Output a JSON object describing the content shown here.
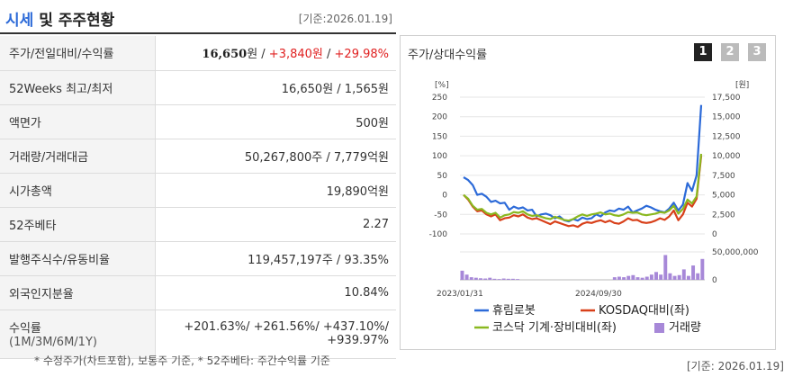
{
  "header": {
    "title_accent": "시세",
    "title_rest": " 및 주주현황",
    "date": "[기준:2026.01.19]"
  },
  "rows": [
    {
      "label": "주가/전일대비/수익률",
      "price": "16,650",
      "won": "원 / ",
      "change": "+3,840원",
      "sep": " / ",
      "rate": "+29.98%"
    },
    {
      "label": "52Weeks 최고/최저",
      "value": "16,650원 / 1,565원"
    },
    {
      "label": "액면가",
      "value": "500원"
    },
    {
      "label": "거래량/거래대금",
      "value": "50,267,800주 / 7,779억원"
    },
    {
      "label": "시가총액",
      "value": "19,890억원"
    },
    {
      "label": "52주베타",
      "value": "2.27"
    },
    {
      "label": "발행주식수/유동비율",
      "value": "119,457,197주 / 93.35%"
    },
    {
      "label": "외국인지분율",
      "value": "10.84%"
    },
    {
      "label": "수익률",
      "label_sub": "(1M/3M/6M/1Y)",
      "line1": "+201.63%/ +261.56%/ +437.10%/",
      "line2": "+939.97%"
    }
  ],
  "footnote": "* 수정주가(차트포함), 보통주 기준, * 52주베타: 주간수익률 기준",
  "footnote_date": "[기준: 2026.01.19]",
  "chart_panel": {
    "title": "주가/상대수익률",
    "pages": [
      "1",
      "2",
      "3"
    ],
    "active_page": "1"
  },
  "colors": {
    "stock": "#2c6ad8",
    "kosdaq": "#d8401a",
    "sector": "#8ab820",
    "volume": "#a788d8"
  },
  "chart_data": {
    "type": "line",
    "left_unit": "[%]",
    "right_unit": "[원]",
    "left_ticks": [
      "250",
      "200",
      "150",
      "100",
      "50",
      "0",
      "-50",
      "-100"
    ],
    "left_range": [
      -100,
      250
    ],
    "right_ticks": [
      "17,500",
      "15,000",
      "12,500",
      "10,000",
      "7,500",
      "5,000",
      "2,500",
      "0"
    ],
    "right_range": [
      0,
      17500
    ],
    "volume_tick": "50,000,000",
    "volume_zero": "0",
    "x_labels": [
      "2023/01/31",
      "2024/09/30"
    ],
    "legend": [
      "휴림로봇",
      "KOSDAQ대비(좌)",
      "코스닥 기계·장비대비(좌)",
      "거래량"
    ],
    "series": [
      {
        "name": "휴림로봇",
        "values": [
          45,
          38,
          25,
          0,
          3,
          -5,
          -18,
          -15,
          -22,
          -20,
          -38,
          -30,
          -35,
          -32,
          -40,
          -38,
          -55,
          -50,
          -48,
          -52,
          -60,
          -55,
          -65,
          -68,
          -62,
          -66,
          -58,
          -62,
          -60,
          -50,
          -55,
          -45,
          -40,
          -42,
          -35,
          -38,
          -30,
          -45,
          -40,
          -35,
          -28,
          -32,
          -38,
          -42,
          -45,
          -35,
          -20,
          -40,
          -25,
          30,
          10,
          50,
          230
        ]
      },
      {
        "name": "KOSDAQ대비(좌)",
        "values": [
          0,
          -12,
          -30,
          -42,
          -40,
          -50,
          -55,
          -50,
          -65,
          -60,
          -58,
          -52,
          -55,
          -50,
          -58,
          -62,
          -60,
          -65,
          -70,
          -75,
          -68,
          -72,
          -76,
          -80,
          -78,
          -82,
          -74,
          -70,
          -72,
          -68,
          -65,
          -70,
          -66,
          -72,
          -74,
          -68,
          -60,
          -65,
          -64,
          -70,
          -72,
          -70,
          -66,
          -60,
          -64,
          -55,
          -40,
          -65,
          -50,
          -20,
          -30,
          -10,
          100
        ]
      },
      {
        "name": "코스닥 기계·장비대비(좌)",
        "values": [
          0,
          -10,
          -28,
          -38,
          -36,
          -46,
          -50,
          -46,
          -58,
          -52,
          -50,
          -44,
          -46,
          -42,
          -50,
          -54,
          -52,
          -56,
          -60,
          -62,
          -56,
          -60,
          -64,
          -66,
          -62,
          -55,
          -50,
          -54,
          -50,
          -48,
          -45,
          -50,
          -48,
          -52,
          -54,
          -50,
          -44,
          -46,
          -45,
          -50,
          -52,
          -50,
          -48,
          -44,
          -46,
          -40,
          -28,
          -48,
          -36,
          -12,
          -22,
          -4,
          105
        ]
      }
    ],
    "volume_share": [
      0.35,
      0.2,
      0.1,
      0.08,
      0.06,
      0.05,
      0.08,
      0.04,
      0.03,
      0.05,
      0.04,
      0.04,
      0.03,
      0,
      0,
      0,
      0,
      0,
      0,
      0,
      0,
      0,
      0,
      0,
      0,
      0,
      0,
      0,
      0,
      0,
      0,
      0,
      0,
      0.1,
      0.12,
      0.1,
      0.15,
      0.18,
      0.1,
      0.08,
      0.12,
      0.2,
      0.3,
      0.2,
      0.95,
      0.25,
      0.15,
      0.18,
      0.4,
      0.15,
      0.55,
      0.25,
      0.8
    ]
  }
}
